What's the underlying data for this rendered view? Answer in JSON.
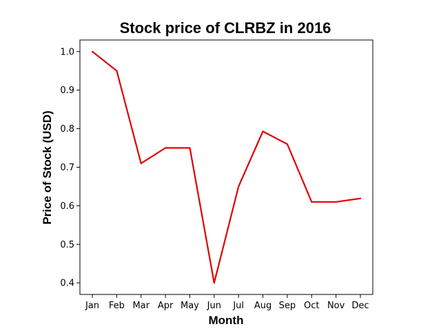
{
  "chart_data": {
    "type": "line",
    "title": "Stock price of CLRBZ in 2016",
    "xlabel": "Month",
    "ylabel": "Price of Stock (USD)",
    "categories": [
      "Jan",
      "Feb",
      "Mar",
      "Apr",
      "May",
      "Jun",
      "Jul",
      "Aug",
      "Sep",
      "Oct",
      "Nov",
      "Dec"
    ],
    "series": [
      {
        "values": [
          1.0,
          0.95,
          0.71,
          0.75,
          0.75,
          0.4,
          0.65,
          0.793,
          0.76,
          0.61,
          0.61,
          0.619
        ],
        "color": "#e00000"
      }
    ],
    "yticks": [
      0.4,
      0.5,
      0.6,
      0.7,
      0.8,
      0.9,
      1.0
    ],
    "ylim": [
      0.37,
      1.03
    ],
    "grid": false,
    "legend": "none"
  }
}
